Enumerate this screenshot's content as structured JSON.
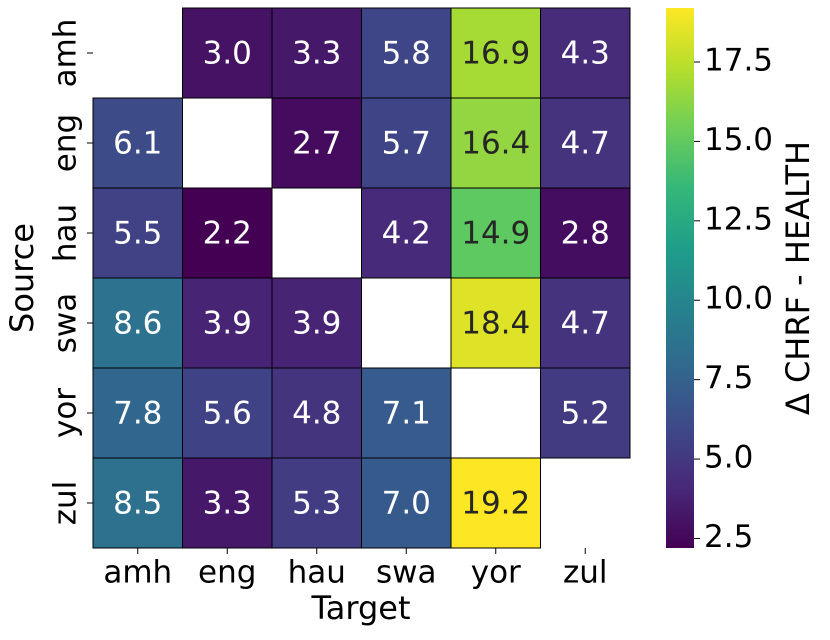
{
  "chart_data": {
    "type": "heatmap",
    "x_label": "Target",
    "y_label": "Source",
    "x": [
      "amh",
      "eng",
      "hau",
      "swa",
      "yor",
      "zul"
    ],
    "y": [
      "amh",
      "eng",
      "hau",
      "swa",
      "yor",
      "zul"
    ],
    "values": [
      [
        null,
        3.0,
        3.3,
        5.8,
        16.9,
        4.3
      ],
      [
        6.1,
        null,
        2.7,
        5.7,
        16.4,
        4.7
      ],
      [
        5.5,
        2.2,
        null,
        4.2,
        14.9,
        2.8
      ],
      [
        8.6,
        3.9,
        3.9,
        null,
        18.4,
        4.7
      ],
      [
        7.8,
        5.6,
        4.8,
        7.1,
        null,
        5.2
      ],
      [
        8.5,
        3.3,
        5.3,
        7.0,
        19.2,
        null
      ]
    ],
    "value_labels": [
      [
        null,
        "3.0",
        "3.3",
        "5.8",
        "16.9",
        "4.3"
      ],
      [
        "6.1",
        null,
        "2.7",
        "5.7",
        "16.4",
        "4.7"
      ],
      [
        "5.5",
        "2.2",
        null,
        "4.2",
        "14.9",
        "2.8"
      ],
      [
        "8.6",
        "3.9",
        "3.9",
        null,
        "18.4",
        "4.7"
      ],
      [
        "7.8",
        "5.6",
        "4.8",
        "7.1",
        null,
        "5.2"
      ],
      [
        "8.5",
        "3.3",
        "5.3",
        "7.0",
        "19.2",
        null
      ]
    ],
    "colormap": "viridis",
    "colorbar_label": "Δ CHRF - HEALTH",
    "zlim": [
      2.2,
      19.2
    ],
    "zticks": [
      2.5,
      {
        "value": 5.0,
        "label": "5.0"
      },
      7.5,
      {
        "value": 10.0,
        "label": "10.0"
      },
      12.5,
      {
        "value": 15.0,
        "label": "15.0"
      },
      17.5
    ]
  }
}
